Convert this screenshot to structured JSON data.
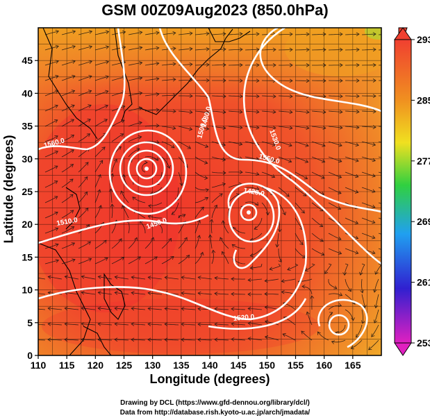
{
  "title": "GSM 00Z09Aug2023 (850.0hPa)",
  "x_axis": {
    "label": "Longitude (degrees)",
    "range": [
      110,
      170
    ],
    "ticks": [
      110,
      115,
      120,
      125,
      130,
      135,
      140,
      145,
      150,
      155,
      160,
      165
    ]
  },
  "y_axis": {
    "label": "Latitude  (degrees)",
    "range": [
      0,
      50
    ],
    "ticks": [
      0,
      5,
      10,
      15,
      20,
      25,
      30,
      35,
      40,
      45
    ]
  },
  "colorbar": {
    "range": [
      253,
      293
    ],
    "ticks": [
      253,
      261,
      269,
      277,
      285,
      293
    ],
    "colors": [
      "#e020c0",
      "#3020d0",
      "#20a0f0",
      "#30d040",
      "#f0e020",
      "#f09020",
      "#f04030"
    ]
  },
  "contour_labels": [
    "1560.0",
    "1500.0",
    "1530.0",
    "1550.0",
    "1510.0",
    "1420.0",
    "1450.0",
    "1520.0",
    "1480.0"
  ],
  "typhoons": [
    {
      "name": "typhoon-center-west",
      "lon": 129,
      "lat": 30.5
    },
    {
      "name": "typhoon-center-east",
      "lon": 147,
      "lat": 24.5
    }
  ],
  "credit": {
    "line1": "Drawing by DCL (https://www.gfd-dennou.org/library/dcl/)",
    "line2": "Data from http://database.rish.kyoto-u.ac.jp/arch/jmadata/"
  }
}
